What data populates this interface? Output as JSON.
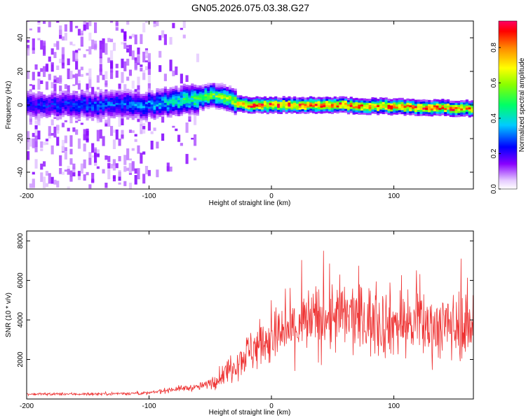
{
  "chart_data": [
    {
      "type": "heatmap",
      "title": "GN05.2026.075.03.38.G27",
      "xlabel": "Height of straight line (km)",
      "ylabel": "Frequency (Hz)",
      "xlim": [
        -200,
        165
      ],
      "ylim": [
        -50,
        50
      ],
      "xticks": [
        -200,
        -100,
        0,
        100
      ],
      "yticks": [
        -40,
        -20,
        0,
        20,
        40
      ],
      "colorbar": {
        "label": "Normalized spectral amplitude",
        "range": [
          0.0,
          0.95
        ],
        "ticks": [
          0.0,
          0.2,
          0.4,
          0.6,
          0.8
        ]
      },
      "ridge": {
        "description_points_x_km": [
          -200,
          -150,
          -100,
          -80,
          -60,
          -50,
          -35,
          -25,
          0,
          50,
          100,
          165
        ],
        "frequency_hz": [
          0,
          0,
          0,
          2,
          4,
          6,
          4,
          0,
          0,
          0,
          -1,
          -2
        ],
        "peak_amplitude": [
          0.25,
          0.3,
          0.35,
          0.45,
          0.55,
          0.6,
          0.65,
          0.9,
          0.9,
          0.9,
          0.9,
          0.9
        ]
      }
    },
    {
      "type": "line",
      "xlabel": "Height of straight line (km)",
      "ylabel": "SNR (10 * v/v)",
      "xlim": [
        -200,
        165
      ],
      "ylim": [
        0,
        8500
      ],
      "xticks": [
        -200,
        -100,
        0,
        100
      ],
      "yticks": [
        2000,
        4000,
        6000,
        8000
      ],
      "series": [
        {
          "name": "SNR",
          "color": "#ee3333",
          "x": [
            -200,
            -150,
            -100,
            -80,
            -60,
            -50,
            -40,
            -30,
            -20,
            -10,
            0,
            10,
            20,
            30,
            50,
            70,
            90,
            110,
            130,
            150,
            165
          ],
          "y": [
            250,
            250,
            300,
            500,
            600,
            800,
            1200,
            1800,
            2300,
            2800,
            3100,
            3300,
            3600,
            3900,
            4200,
            4100,
            3900,
            3800,
            3700,
            3700,
            3800
          ]
        }
      ]
    }
  ]
}
